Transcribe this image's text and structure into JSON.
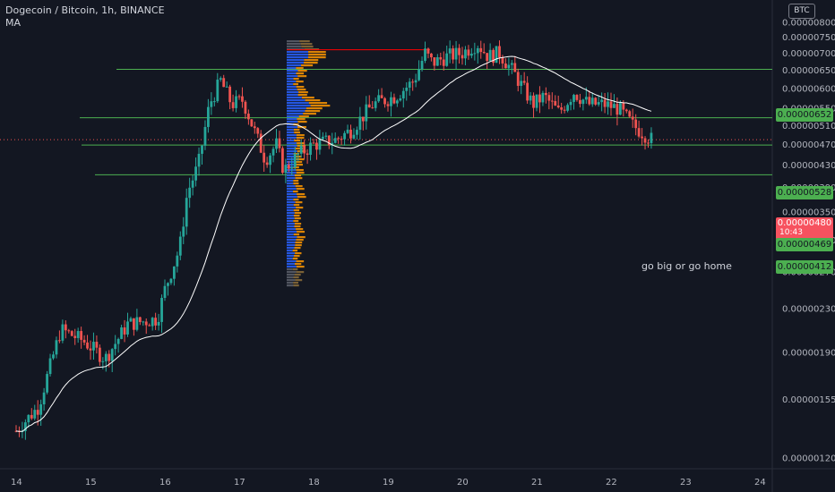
{
  "header": {
    "symbol": "Dogecoin / Bitcoin, 1h, BINANCE",
    "indicator": "MA"
  },
  "currency_label": "BTC",
  "annotation": "go big or go home",
  "current_price": {
    "value": "0.00000480",
    "countdown": "10:43",
    "color": "#f7525f"
  },
  "colors": {
    "background": "#131722",
    "up": "#26a69a",
    "down": "#ef5350",
    "level_line": "#4caf50",
    "level_badge": "#4caf50",
    "ma_line": "#ffffff",
    "vp_blue": "#2962ff",
    "vp_orange": "#ff9800",
    "poc_line": "#ff0000"
  },
  "chart_data": {
    "type": "candlestick",
    "title": "Dogecoin / Bitcoin, 1h, BINANCE",
    "y_scale": "log",
    "ylim": [
      1.125e-06,
      8.1e-07
    ],
    "y_ticks": [
      "0.00000800",
      "0.00000750",
      "0.00000700",
      "0.00000650",
      "0.00000600",
      "0.00000550",
      "0.00000510",
      "0.00000470",
      "0.00000430",
      "0.00000390",
      "0.00000350",
      "0.00000310",
      "0.00000270",
      "0.00000230",
      "0.00000190",
      "0.00000155",
      "0.00000120"
    ],
    "x_ticks": [
      "14",
      "15",
      "16",
      "17",
      "18",
      "19",
      "20",
      "21",
      "22",
      "23",
      "24"
    ],
    "horizontal_levels": [
      {
        "label": "0.00000652",
        "value": 6.52e-06
      },
      {
        "label": "0.00000528",
        "value": 5.28e-06
      },
      {
        "label": "0.00000469",
        "value": 4.69e-06
      },
      {
        "label": "0.00000412",
        "value": 4.12e-06
      }
    ],
    "price_anchors": [
      [
        14.0,
        1.35e-06
      ],
      [
        14.3,
        1.5e-06
      ],
      [
        14.6,
        2.1e-06
      ],
      [
        14.9,
        2e-06
      ],
      [
        15.2,
        1.85e-06
      ],
      [
        15.5,
        2.15e-06
      ],
      [
        15.9,
        2.2e-06
      ],
      [
        16.0,
        2.5e-06
      ],
      [
        16.2,
        3e-06
      ],
      [
        16.3,
        3.8e-06
      ],
      [
        16.45,
        4.3e-06
      ],
      [
        16.6,
        5.6e-06
      ],
      [
        16.75,
        6.2e-06
      ],
      [
        16.9,
        5.6e-06
      ],
      [
        17.05,
        5.7e-06
      ],
      [
        17.2,
        5e-06
      ],
      [
        17.35,
        4.4e-06
      ],
      [
        17.5,
        4.7e-06
      ],
      [
        17.6,
        4.2e-06
      ],
      [
        17.8,
        4.5e-06
      ],
      [
        18.0,
        4.7e-06
      ],
      [
        18.3,
        4.8e-06
      ],
      [
        18.5,
        5e-06
      ],
      [
        18.8,
        5.6e-06
      ],
      [
        19.1,
        5.8e-06
      ],
      [
        19.35,
        6.2e-06
      ],
      [
        19.5,
        7e-06
      ],
      [
        19.6,
        6.7e-06
      ],
      [
        19.8,
        6.9e-06
      ],
      [
        20.0,
        7e-06
      ],
      [
        20.2,
        7.3e-06
      ],
      [
        20.35,
        6.9e-06
      ],
      [
        20.5,
        7e-06
      ],
      [
        20.7,
        6.4e-06
      ],
      [
        20.85,
        5.9e-06
      ],
      [
        20.95,
        5.6e-06
      ],
      [
        21.1,
        5.8e-06
      ],
      [
        21.3,
        5.4e-06
      ],
      [
        21.5,
        5.9e-06
      ],
      [
        21.7,
        5.6e-06
      ],
      [
        21.9,
        5.6e-06
      ],
      [
        22.1,
        5.5e-06
      ],
      [
        22.3,
        5.1e-06
      ],
      [
        22.55,
        4.8e-06
      ]
    ],
    "ma_period": 30
  }
}
